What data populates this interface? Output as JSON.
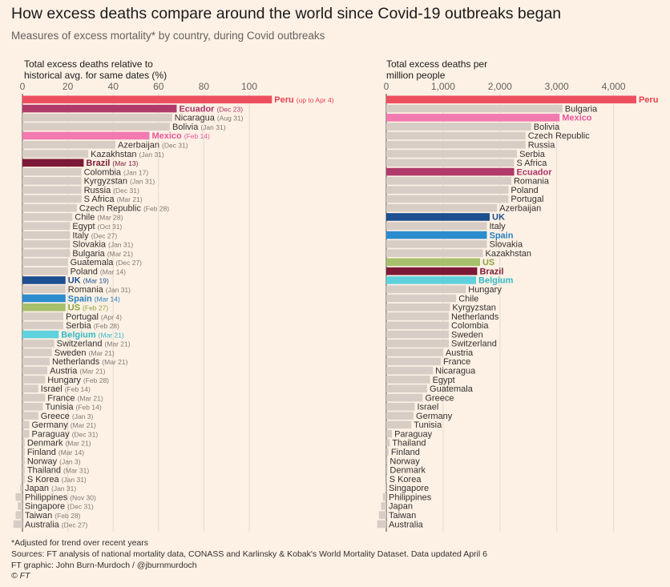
{
  "header": {
    "title": "How excess deaths compare around the world since Covid-19 outbreaks began",
    "subtitle": "Measures of excess mortality* by country, during Covid outbreaks"
  },
  "footer": {
    "note": "*Adjusted for trend over recent years",
    "sources": "Sources: FT analysis of national mortality data, CONASS and Karlinsky & Kobak's World Mortality Dataset. Data updated April 6",
    "credit": "FT graphic: John Burn-Murdoch / @jburnmurdoch",
    "copyright": "© FT"
  },
  "colors": {
    "default": "#d8cdc5",
    "Peru": "#ee4f5f",
    "Ecuador": "#b03b6b",
    "Mexico": "#f27ab1",
    "Brazil": "#7c1937",
    "UK": "#1d4f91",
    "Spain": "#2b8ccd",
    "US": "#a6c06c",
    "Belgium": "#5fd1dd"
  },
  "label_colors": {
    "Peru": "#e8404f",
    "Ecuador": "#a83565",
    "Mexico": "#e8559c",
    "Brazil": "#7c1937",
    "UK": "#1d4f91",
    "Spain": "#2480c0",
    "US": "#8aa53a",
    "Belgium": "#2fb8c6"
  },
  "chart_data": [
    {
      "type": "bar",
      "orientation": "horizontal",
      "title": "Total excess deaths relative to historical avg. for same dates (%)",
      "title_lines": [
        "Total excess deaths relative to",
        "historical avg. for same dates (%)"
      ],
      "xlim": [
        0,
        120
      ],
      "ticks": [
        0,
        20,
        40,
        60,
        80,
        100
      ],
      "tick_labels": [
        "0",
        "20",
        "40",
        "60",
        "80",
        "100"
      ],
      "rows": [
        {
          "name": "Peru",
          "value": 110,
          "note": "(up to Apr 4)"
        },
        {
          "name": "Ecuador",
          "value": 68,
          "note": "(Dec 23)"
        },
        {
          "name": "Nicaragua",
          "value": 66,
          "note": "(Aug 31)"
        },
        {
          "name": "Bolivia",
          "value": 65,
          "note": "(Jan 31)"
        },
        {
          "name": "Mexico",
          "value": 56,
          "note": "(Feb 14)"
        },
        {
          "name": "Azerbaijan",
          "value": 41,
          "note": "(Dec 31)"
        },
        {
          "name": "Kazakhstan",
          "value": 29,
          "note": "(Jan 31)"
        },
        {
          "name": "Brazil",
          "value": 27,
          "note": "(Mar 13)"
        },
        {
          "name": "Colombia",
          "value": 26,
          "note": "(Jan 17)"
        },
        {
          "name": "Kyrgyzstan",
          "value": 26,
          "note": "(Jan 31)"
        },
        {
          "name": "Russia",
          "value": 26,
          "note": "(Dec 31)"
        },
        {
          "name": "S Africa",
          "value": 26,
          "note": "(Mar 21)"
        },
        {
          "name": "Czech Republic",
          "value": 24,
          "note": "(Feb 28)"
        },
        {
          "name": "Chile",
          "value": 22,
          "note": "(Mar 28)"
        },
        {
          "name": "Egypt",
          "value": 21,
          "note": "(Oct 31)"
        },
        {
          "name": "Italy",
          "value": 21,
          "note": "(Dec 27)"
        },
        {
          "name": "Slovakia",
          "value": 21,
          "note": "(Jan 31)"
        },
        {
          "name": "Bulgaria",
          "value": 21,
          "note": "(Mar 21)"
        },
        {
          "name": "Guatemala",
          "value": 20,
          "note": "(Dec 27)"
        },
        {
          "name": "Poland",
          "value": 20,
          "note": "(Mar 14)"
        },
        {
          "name": "UK",
          "value": 19,
          "note": "(Mar 19)"
        },
        {
          "name": "Romania",
          "value": 19,
          "note": "(Jan 31)"
        },
        {
          "name": "Spain",
          "value": 19,
          "note": "(Mar 14)"
        },
        {
          "name": "US",
          "value": 19,
          "note": "(Feb 27)"
        },
        {
          "name": "Portugal",
          "value": 18,
          "note": "(Apr 4)"
        },
        {
          "name": "Serbia",
          "value": 18,
          "note": "(Feb 28)"
        },
        {
          "name": "Belgium",
          "value": 16,
          "note": "(Mar 21)"
        },
        {
          "name": "Switzerland",
          "value": 14,
          "note": "(Mar 21)"
        },
        {
          "name": "Sweden",
          "value": 13,
          "note": "(Mar 21)"
        },
        {
          "name": "Netherlands",
          "value": 12,
          "note": "(Mar 21)"
        },
        {
          "name": "Austria",
          "value": 11,
          "note": "(Mar 21)"
        },
        {
          "name": "Hungary",
          "value": 10,
          "note": "(Feb 28)"
        },
        {
          "name": "Israel",
          "value": 7,
          "note": "(Feb 14)"
        },
        {
          "name": "France",
          "value": 10,
          "note": "(Mar 21)"
        },
        {
          "name": "Tunisia",
          "value": 9,
          "note": "(Feb 14)"
        },
        {
          "name": "Greece",
          "value": 7,
          "note": "(Jan 3)"
        },
        {
          "name": "Germany",
          "value": 3,
          "note": "(Mar 21)"
        },
        {
          "name": "Paraguay",
          "value": 3,
          "note": "(Dec 31)"
        },
        {
          "name": "Denmark",
          "value": 1,
          "note": "(Mar 21)"
        },
        {
          "name": "Finland",
          "value": 1,
          "note": "(Mar 14)"
        },
        {
          "name": "Norway",
          "value": 1,
          "note": "(Jan 3)"
        },
        {
          "name": "Thailand",
          "value": 1,
          "note": "(Mar 31)"
        },
        {
          "name": "S Korea",
          "value": 1,
          "note": "(Jan 31)"
        },
        {
          "name": "Japan",
          "value": -1,
          "note": "(Jan 31)"
        },
        {
          "name": "Philippines",
          "value": -3,
          "note": "(Nov 30)"
        },
        {
          "name": "Singapore",
          "value": -2,
          "note": "(Dec 31)"
        },
        {
          "name": "Taiwan",
          "value": -3,
          "note": "(Feb 28)"
        },
        {
          "name": "Australia",
          "value": -4,
          "note": "(Dec 27)"
        }
      ]
    },
    {
      "type": "bar",
      "orientation": "horizontal",
      "title": "Total excess deaths per million people",
      "title_lines": [
        "Total excess deaths per",
        "million people"
      ],
      "xlim": [
        0,
        4500
      ],
      "ticks": [
        0,
        1000,
        2000,
        3000,
        4000
      ],
      "tick_labels": [
        "0",
        "1,000",
        "2,000",
        "3,000",
        "4,000"
      ],
      "rows": [
        {
          "name": "Peru",
          "value": 4400
        },
        {
          "name": "Bulgaria",
          "value": 3100
        },
        {
          "name": "Mexico",
          "value": 3050
        },
        {
          "name": "Bolivia",
          "value": 2550
        },
        {
          "name": "Czech Republic",
          "value": 2450
        },
        {
          "name": "Russia",
          "value": 2450
        },
        {
          "name": "Serbia",
          "value": 2300
        },
        {
          "name": "S Africa",
          "value": 2250
        },
        {
          "name": "Ecuador",
          "value": 2250
        },
        {
          "name": "Romania",
          "value": 2200
        },
        {
          "name": "Poland",
          "value": 2150
        },
        {
          "name": "Portugal",
          "value": 2150
        },
        {
          "name": "Azerbaijan",
          "value": 1950
        },
        {
          "name": "UK",
          "value": 1820
        },
        {
          "name": "Italy",
          "value": 1770
        },
        {
          "name": "Spain",
          "value": 1770
        },
        {
          "name": "Slovakia",
          "value": 1770
        },
        {
          "name": "Kazakhstan",
          "value": 1700
        },
        {
          "name": "US",
          "value": 1650
        },
        {
          "name": "Brazil",
          "value": 1600
        },
        {
          "name": "Belgium",
          "value": 1580
        },
        {
          "name": "Hungary",
          "value": 1400
        },
        {
          "name": "Chile",
          "value": 1230
        },
        {
          "name": "Kyrgyzstan",
          "value": 1120
        },
        {
          "name": "Netherlands",
          "value": 1100
        },
        {
          "name": "Colombia",
          "value": 1100
        },
        {
          "name": "Sweden",
          "value": 1100
        },
        {
          "name": "Switzerland",
          "value": 1100
        },
        {
          "name": "Austria",
          "value": 1000
        },
        {
          "name": "France",
          "value": 960
        },
        {
          "name": "Nicaragua",
          "value": 820
        },
        {
          "name": "Egypt",
          "value": 770
        },
        {
          "name": "Guatemala",
          "value": 720
        },
        {
          "name": "Greece",
          "value": 640
        },
        {
          "name": "Israel",
          "value": 500
        },
        {
          "name": "Germany",
          "value": 480
        },
        {
          "name": "Tunisia",
          "value": 440
        },
        {
          "name": "Paraguay",
          "value": 100
        },
        {
          "name": "Thailand",
          "value": 60
        },
        {
          "name": "Finland",
          "value": 40
        },
        {
          "name": "Norway",
          "value": 20
        },
        {
          "name": "Denmark",
          "value": 20
        },
        {
          "name": "S Korea",
          "value": 10
        },
        {
          "name": "Singapore",
          "value": -20
        },
        {
          "name": "Philippines",
          "value": -60
        },
        {
          "name": "Japan",
          "value": -90
        },
        {
          "name": "Taiwan",
          "value": -130
        },
        {
          "name": "Australia",
          "value": -160
        }
      ]
    }
  ]
}
